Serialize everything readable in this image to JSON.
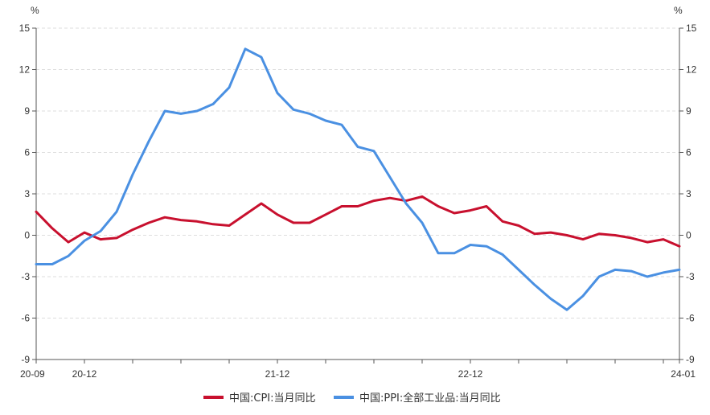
{
  "chart_data": {
    "type": "line",
    "title": "",
    "y_unit_left": "%",
    "y_unit_right": "%",
    "ylim": [
      -9,
      15
    ],
    "y_ticks": [
      15,
      12,
      9,
      6,
      3,
      0,
      -3,
      -6,
      -9
    ],
    "x_tick_labels": [
      "20-09",
      "20-12",
      "21-12",
      "22-12",
      "24-01"
    ],
    "grid": true,
    "legend_position": "bottom",
    "x": [
      "2020-09",
      "2020-10",
      "2020-11",
      "2020-12",
      "2021-01",
      "2021-02",
      "2021-03",
      "2021-04",
      "2021-05",
      "2021-06",
      "2021-07",
      "2021-08",
      "2021-09",
      "2021-10",
      "2021-11",
      "2021-12",
      "2022-01",
      "2022-02",
      "2022-03",
      "2022-04",
      "2022-05",
      "2022-06",
      "2022-07",
      "2022-08",
      "2022-09",
      "2022-10",
      "2022-11",
      "2022-12",
      "2023-01",
      "2023-02",
      "2023-03",
      "2023-04",
      "2023-05",
      "2023-06",
      "2023-07",
      "2023-08",
      "2023-09",
      "2023-10",
      "2023-11",
      "2023-12",
      "2024-01"
    ],
    "series": [
      {
        "name": "中国:CPI:当月同比",
        "color": "#c8102e",
        "values": [
          1.7,
          0.5,
          -0.5,
          0.2,
          -0.3,
          -0.2,
          0.4,
          0.9,
          1.3,
          1.1,
          1.0,
          0.8,
          0.7,
          1.5,
          2.3,
          1.5,
          0.9,
          0.9,
          1.5,
          2.1,
          2.1,
          2.5,
          2.7,
          2.5,
          2.8,
          2.1,
          1.6,
          1.8,
          2.1,
          1.0,
          0.7,
          0.1,
          0.2,
          0.0,
          -0.3,
          0.1,
          0.0,
          -0.2,
          -0.5,
          -0.3,
          -0.8
        ]
      },
      {
        "name": "中国:PPI:全部工业品:当月同比",
        "color": "#4a90e2",
        "values": [
          -2.1,
          -2.1,
          -1.5,
          -0.4,
          0.3,
          1.7,
          4.4,
          6.8,
          9.0,
          8.8,
          9.0,
          9.5,
          10.7,
          13.5,
          12.9,
          10.3,
          9.1,
          8.8,
          8.3,
          8.0,
          6.4,
          6.1,
          4.2,
          2.3,
          0.9,
          -1.3,
          -1.3,
          -0.7,
          -0.8,
          -1.4,
          -2.5,
          -3.6,
          -4.6,
          -5.4,
          -4.4,
          -3.0,
          -2.5,
          -2.6,
          -3.0,
          -2.7,
          -2.5
        ]
      }
    ]
  }
}
